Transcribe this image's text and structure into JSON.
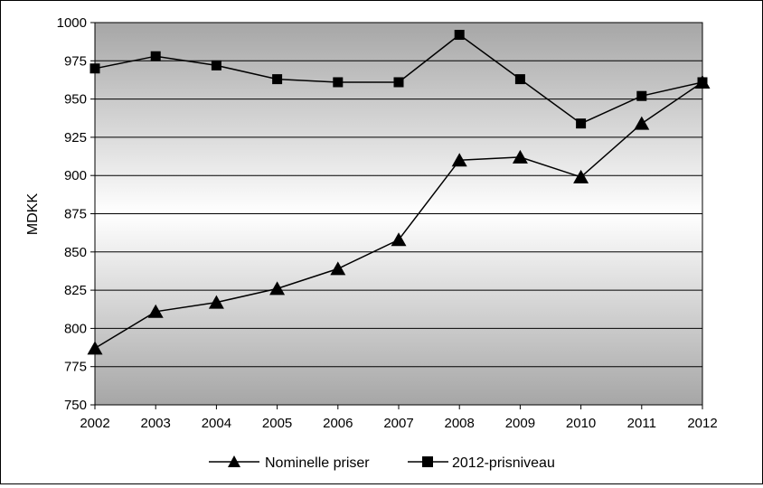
{
  "chart_data": {
    "type": "line",
    "title": "",
    "xlabel": "",
    "ylabel": "MDKK",
    "ylim": [
      750,
      1000
    ],
    "yticks": [
      750,
      775,
      800,
      825,
      850,
      875,
      900,
      925,
      950,
      975,
      1000
    ],
    "grid": true,
    "legend_position": "bottom",
    "categories": [
      "2002",
      "2003",
      "2004",
      "2005",
      "2006",
      "2007",
      "2008",
      "2009",
      "2010",
      "2011",
      "2012"
    ],
    "series": [
      {
        "name": "Nominelle priser",
        "marker": "triangle",
        "color": "#000000",
        "values": [
          787,
          811,
          817,
          826,
          839,
          858,
          910,
          912,
          899,
          934,
          961
        ]
      },
      {
        "name": "2012-prisniveau",
        "marker": "square",
        "color": "#000000",
        "values": [
          970,
          978,
          972,
          963,
          961,
          961,
          992,
          963,
          934,
          952,
          961
        ]
      }
    ]
  }
}
